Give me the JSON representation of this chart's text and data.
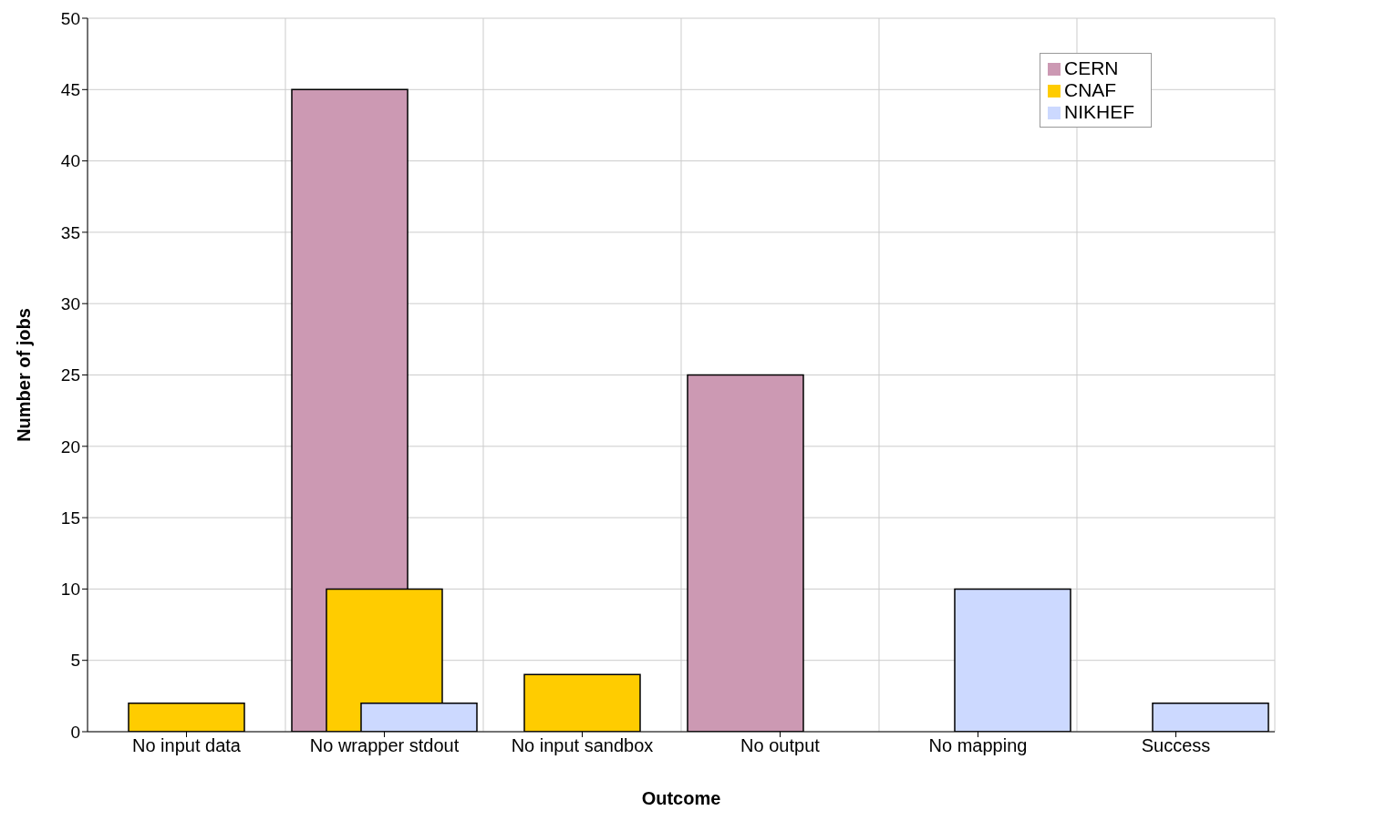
{
  "chart_data": {
    "type": "bar",
    "xlabel": "Outcome",
    "ylabel": "Number of jobs",
    "categories": [
      "No input data",
      "No wrapper stdout",
      "No input sandbox",
      "No output",
      "No mapping",
      "Success"
    ],
    "series": [
      {
        "name": "CERN",
        "color": "#cc99b3",
        "values": [
          0,
          45,
          0,
          25,
          0,
          0
        ]
      },
      {
        "name": "CNAF",
        "color": "#ffcc00",
        "values": [
          2,
          10,
          4,
          0,
          0,
          0
        ]
      },
      {
        "name": "NIKHEF",
        "color": "#ccd9ff",
        "values": [
          0,
          2,
          0,
          0,
          10,
          2
        ]
      }
    ],
    "ylim": [
      0,
      50
    ],
    "yticks": [
      0,
      5,
      10,
      15,
      20,
      25,
      30,
      35,
      40,
      45,
      50
    ],
    "grid": true,
    "legend": "top right"
  }
}
